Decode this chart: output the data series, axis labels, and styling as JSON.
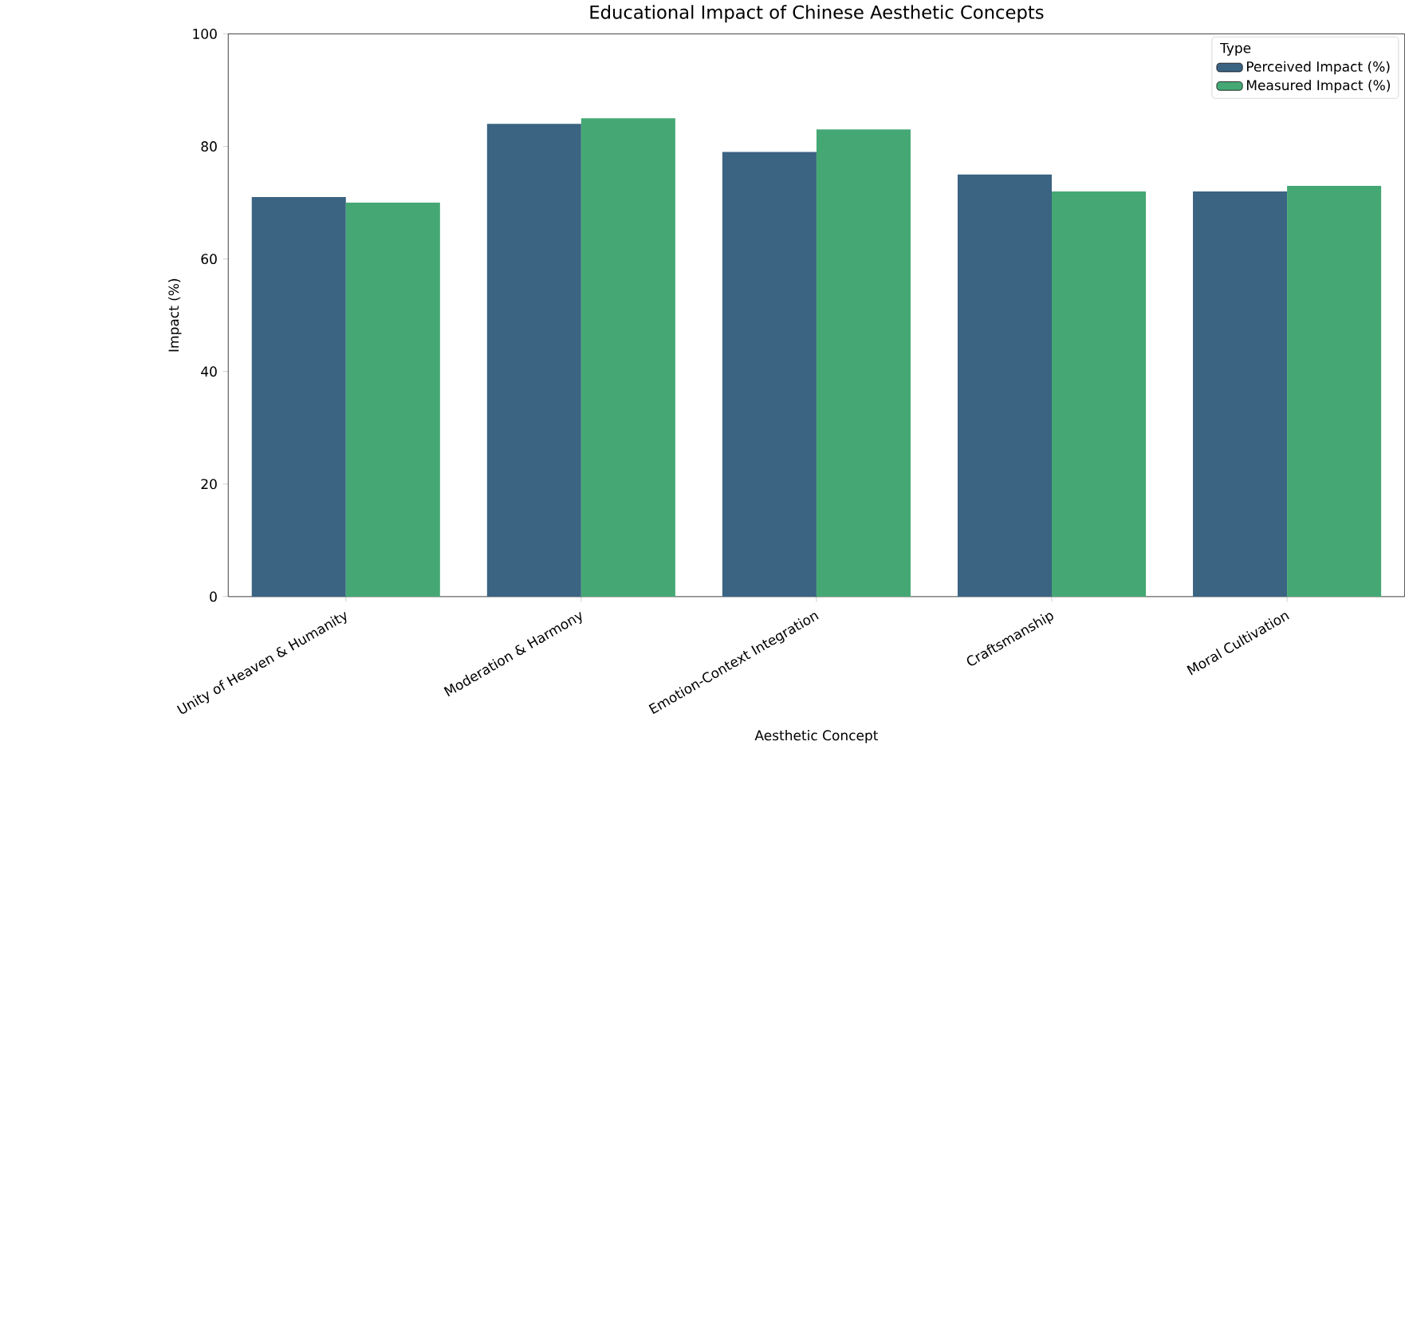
{
  "chart_data": {
    "type": "bar",
    "title": "Educational Impact of Chinese Aesthetic Concepts",
    "xlabel": "Aesthetic Concept",
    "ylabel": "Impact (%)",
    "legend_title": "Type",
    "categories": [
      "Unity of Heaven & Humanity",
      "Moderation & Harmony",
      "Emotion-Context Integration",
      "Craftsmanship",
      "Moral Cultivation"
    ],
    "series": [
      {
        "name": "Perceived Impact (%)",
        "color": "#3b6382",
        "values": [
          71,
          84,
          79,
          75,
          72
        ]
      },
      {
        "name": "Measured Impact (%)",
        "color": "#45a874",
        "values": [
          70,
          85,
          83,
          72,
          73
        ]
      }
    ],
    "ylim": [
      0,
      100
    ],
    "yticks": [
      0,
      20,
      40,
      60,
      80,
      100
    ],
    "legend": "top right"
  }
}
